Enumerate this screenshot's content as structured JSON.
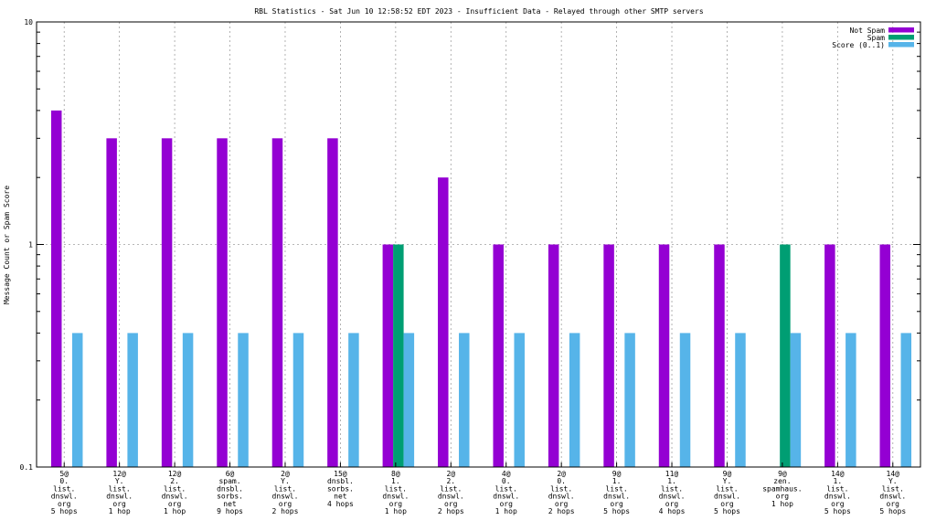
{
  "chart_data": {
    "type": "bar",
    "title": "RBL Statistics - Sat Jun 10 12:58:52 EDT 2023 - Insufficient Data - Relayed through other SMTP servers",
    "ylabel": "Message Count or Spam Score",
    "xlabel": "",
    "yscale": "log",
    "ylim": [
      0.1,
      10
    ],
    "yticks": [
      "0.1",
      "1",
      "10"
    ],
    "grid": true,
    "legend_position": "top-right",
    "categories": [
      [
        "5@",
        "0.",
        "list.",
        "dnswl.",
        "org",
        "5 hops"
      ],
      [
        "12@",
        "Y.",
        "list.",
        "dnswl.",
        "org",
        "1 hop"
      ],
      [
        "12@",
        "2.",
        "list.",
        "dnswl.",
        "org",
        "1 hop"
      ],
      [
        "6@",
        "spam.",
        "dnsbl.",
        "sorbs.",
        "net",
        "9 hops"
      ],
      [
        "2@",
        "Y.",
        "list.",
        "dnswl.",
        "org",
        "2 hops"
      ],
      [
        "15@",
        "dnsbl.",
        "sorbs.",
        "net",
        "4 hops"
      ],
      [
        "8@",
        "1.",
        "list.",
        "dnswl.",
        "org",
        "1 hop"
      ],
      [
        "2@",
        "2.",
        "list.",
        "dnswl.",
        "org",
        "2 hops"
      ],
      [
        "4@",
        "0.",
        "list.",
        "dnswl.",
        "org",
        "1 hop"
      ],
      [
        "2@",
        "0.",
        "list.",
        "dnswl.",
        "org",
        "2 hops"
      ],
      [
        "9@",
        "1.",
        "list.",
        "dnswl.",
        "org",
        "5 hops"
      ],
      [
        "11@",
        "1.",
        "list.",
        "dnswl.",
        "org",
        "4 hops"
      ],
      [
        "9@",
        "Y.",
        "list.",
        "dnswl.",
        "org",
        "5 hops"
      ],
      [
        "9@",
        "zen.",
        "spamhaus.",
        "org",
        "1 hop"
      ],
      [
        "14@",
        "1.",
        "list.",
        "dnswl.",
        "org",
        "5 hops"
      ],
      [
        "14@",
        "Y.",
        "list.",
        "dnswl.",
        "org",
        "5 hops"
      ]
    ],
    "series": [
      {
        "name": "Not Spam",
        "color": "#9400d3",
        "values": [
          4,
          3,
          3,
          3,
          3,
          3,
          1,
          2,
          1,
          1,
          1,
          1,
          1,
          null,
          1,
          1
        ]
      },
      {
        "name": "Spam",
        "color": "#009e73",
        "values": [
          null,
          null,
          null,
          null,
          null,
          null,
          1,
          null,
          null,
          null,
          null,
          null,
          null,
          1,
          null,
          null
        ]
      },
      {
        "name": "Score (0..1)",
        "color": "#56b4e9",
        "values": [
          0.4,
          0.4,
          0.4,
          0.4,
          0.4,
          0.4,
          0.4,
          0.4,
          0.4,
          0.4,
          0.4,
          0.4,
          0.4,
          0.4,
          0.4,
          0.4
        ]
      }
    ]
  }
}
